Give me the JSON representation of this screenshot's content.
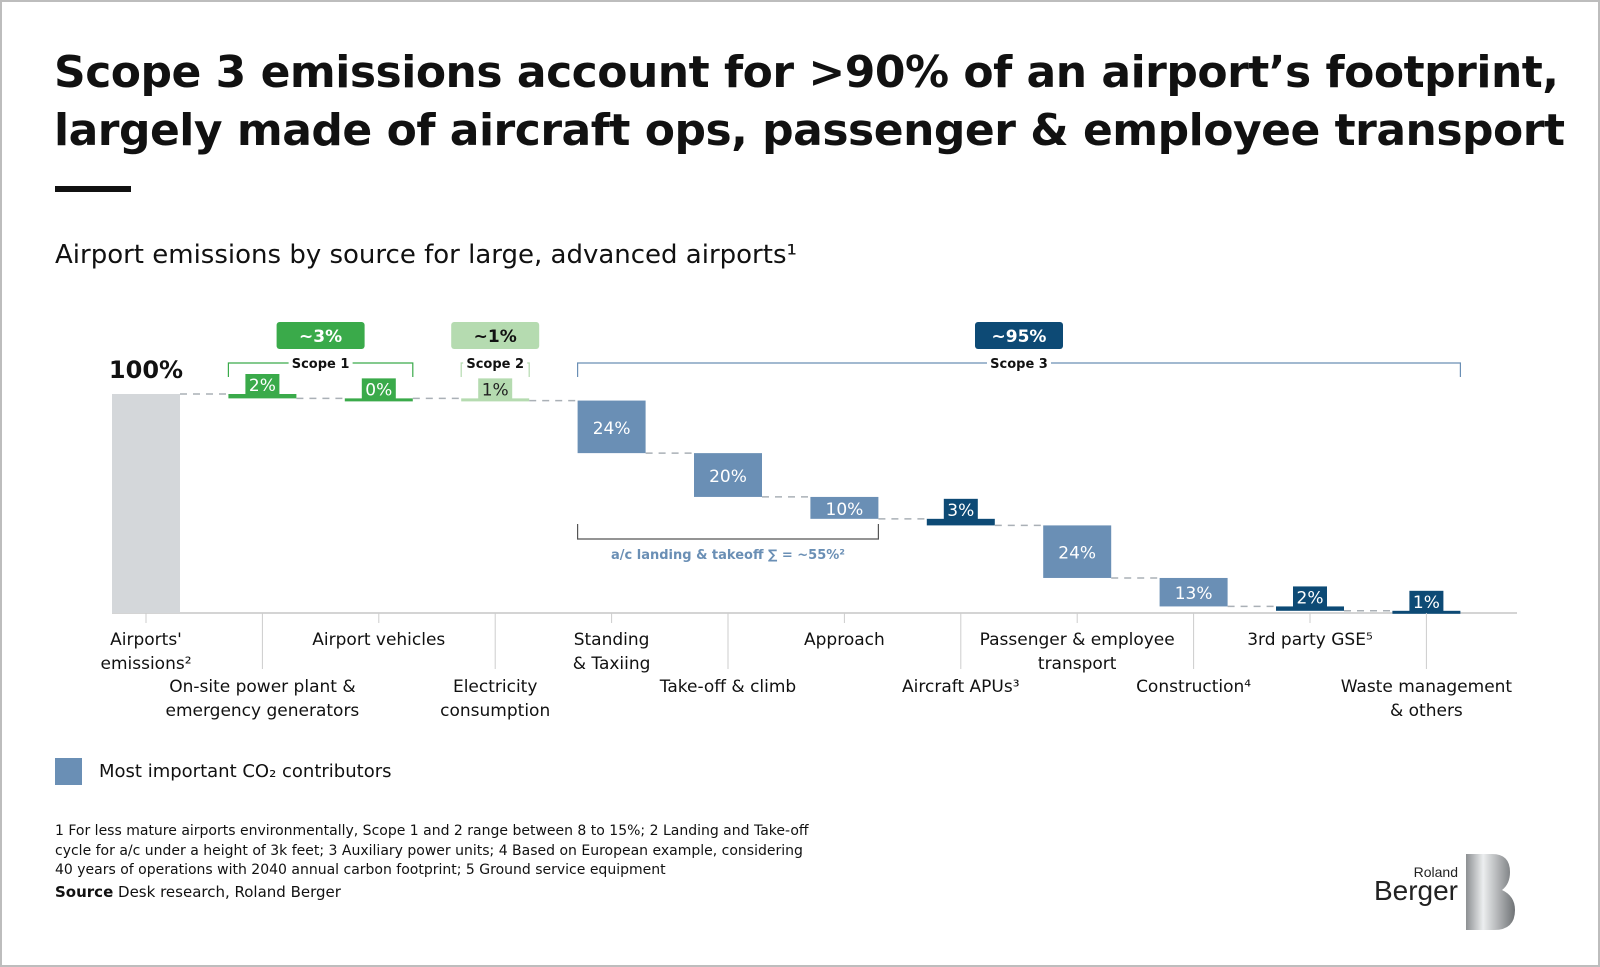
{
  "title": "Scope 3 emissions account for >90% of an airport’s footprint, largely made of aircraft ops, passenger & employee transport",
  "subtitle": "Airport emissions by source for large, advanced airports¹",
  "chart_data": {
    "type": "waterfall",
    "total_label": "100%",
    "total_value": 100,
    "categories": [
      "Airports' emissions²",
      "On-site power plant & emergency generators",
      "Airport vehicles",
      "Electricity consumption",
      "Standing & Taxiing",
      "Take-off & climb",
      "Approach",
      "Aircraft APUs³",
      "Passenger & employee transport",
      "Construction⁴",
      "3rd party GSE⁵",
      "Waste management & others"
    ],
    "values": [
      100,
      2,
      0,
      1,
      24,
      20,
      10,
      3,
      24,
      13,
      2,
      1
    ],
    "labels": [
      "",
      "2%",
      "0%",
      "1%",
      "24%",
      "20%",
      "10%",
      "3%",
      "24%",
      "13%",
      "2%",
      "1%"
    ],
    "colors": [
      "#d4d7da",
      "#3aaa4a",
      "#3aaa4a",
      "#b5dbb0",
      "#6a8fb5",
      "#6a8fb5",
      "#6a8fb5",
      "#0d4a75",
      "#6a8fb5",
      "#6a8fb5",
      "#0d4a75",
      "#0d4a75"
    ],
    "ylim": [
      0,
      100
    ],
    "groups": [
      {
        "name": "Scope 1",
        "total": "~3%",
        "color": "#3aaa4a",
        "text_color": "#ffffff",
        "from": 1,
        "to": 2
      },
      {
        "name": "Scope 2",
        "total": "~1%",
        "color": "#b5dbb0",
        "text_color": "#111111",
        "from": 3,
        "to": 3
      },
      {
        "name": "Scope 3",
        "total": "~95%",
        "color": "#0d4a75",
        "text_color": "#ffffff",
        "from": 4,
        "to": 11
      }
    ],
    "annotation": {
      "text": "a/c landing & takeoff ∑ = ~55%²",
      "from": 4,
      "to": 6
    },
    "legend": [
      {
        "label": "Most important CO₂ contributors",
        "color": "#6a8fb5"
      }
    ]
  },
  "footnotes": "1 For less mature airports environmentally, Scope 1 and 2 range between 8 to 15%; 2 Landing and Take-off cycle for a/c under a height of 3k feet; 3 Auxiliary power units; 4 Based on European example, considering 40 years of operations with 2040 annual carbon footprint; 5 Ground service equipment",
  "source_label": "Source",
  "source_text": "Desk research, Roland Berger",
  "logo": {
    "line1": "Roland",
    "line2": "Berger"
  }
}
